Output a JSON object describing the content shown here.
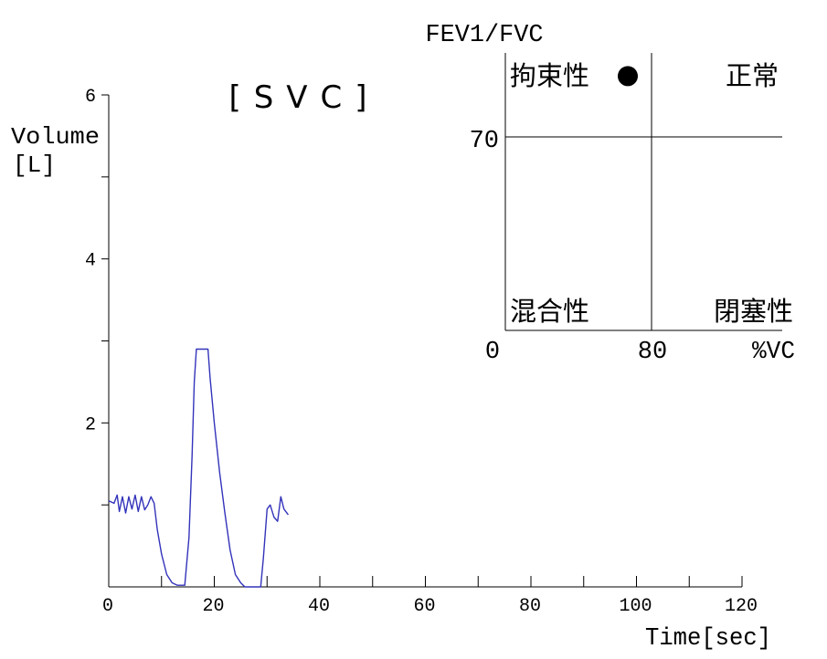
{
  "chart_data": [
    {
      "type": "line",
      "title": "[SVC]",
      "xlabel": "Time[sec]",
      "ylabel": "Volume",
      "ylabel_unit": "[L]",
      "xlim": [
        0,
        120
      ],
      "ylim": [
        0,
        6
      ],
      "x_ticks_labeled": [
        0,
        20,
        40,
        60,
        80,
        100,
        120
      ],
      "x_ticks_minor": [
        10,
        30,
        50,
        70,
        90,
        110
      ],
      "y_ticks_labeled": [
        2,
        4,
        6
      ],
      "y_ticks_minor": [
        1,
        3,
        5
      ],
      "grid": false,
      "series_color": "#3333bb",
      "series": [
        {
          "points": [
            [
              0.0,
              1.05
            ],
            [
              1.0,
              1.02
            ],
            [
              1.6,
              1.12
            ],
            [
              2.0,
              0.92
            ],
            [
              2.6,
              1.1
            ],
            [
              3.2,
              0.9
            ],
            [
              3.8,
              1.1
            ],
            [
              4.4,
              0.95
            ],
            [
              5.0,
              1.12
            ],
            [
              5.6,
              0.92
            ],
            [
              6.2,
              1.1
            ],
            [
              6.8,
              0.94
            ],
            [
              7.4,
              1.0
            ],
            [
              8.0,
              1.1
            ],
            [
              8.6,
              1.02
            ],
            [
              9.2,
              0.7
            ],
            [
              10.0,
              0.4
            ],
            [
              11.0,
              0.15
            ],
            [
              12.0,
              0.05
            ],
            [
              13.0,
              0.02
            ],
            [
              14.4,
              0.02
            ],
            [
              15.2,
              0.6
            ],
            [
              15.8,
              1.6
            ],
            [
              16.2,
              2.5
            ],
            [
              16.6,
              2.9
            ],
            [
              18.8,
              2.9
            ],
            [
              19.2,
              2.55
            ],
            [
              20.0,
              2.0
            ],
            [
              21.0,
              1.4
            ],
            [
              22.0,
              0.9
            ],
            [
              23.0,
              0.45
            ],
            [
              24.0,
              0.15
            ],
            [
              25.0,
              0.05
            ],
            [
              25.8,
              0.0
            ],
            [
              28.8,
              0.0
            ],
            [
              29.3,
              0.35
            ],
            [
              30.0,
              0.95
            ],
            [
              30.6,
              1.0
            ],
            [
              31.3,
              0.85
            ],
            [
              32.0,
              0.8
            ],
            [
              32.6,
              1.1
            ],
            [
              33.2,
              0.95
            ],
            [
              34.0,
              0.88
            ]
          ]
        }
      ]
    },
    {
      "type": "scatter",
      "title": "FEV1/FVC",
      "xlabel": "%VC",
      "ylabel": "FEV1/FVC",
      "x_ticks": [
        0,
        80
      ],
      "y_ticks": [
        70
      ],
      "xlim": [
        0,
        150
      ],
      "ylim": [
        0,
        100
      ],
      "threshold_x": 80,
      "threshold_y": 70,
      "quadrant_labels": {
        "top_left": "拘束性",
        "top_right": "正常",
        "bottom_left": "混合性",
        "bottom_right": "閉塞性"
      },
      "points": [
        {
          "x": 67,
          "y": 92
        }
      ],
      "point_color": "#000000"
    }
  ]
}
